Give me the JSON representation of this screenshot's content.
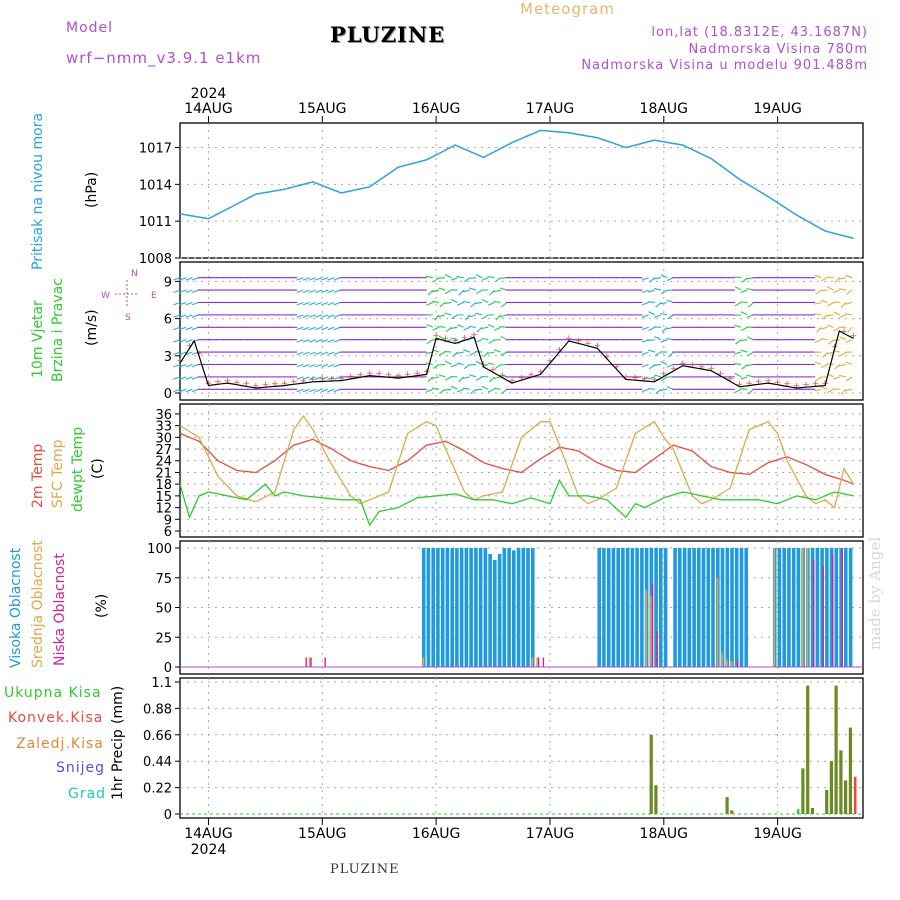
{
  "header": {
    "model_label": "Model",
    "model_name": "wrf−nmm_v3.9.1  e1km",
    "station": "PLUZINE",
    "title": "Meteogram",
    "lonlat": "lon,lat (18.8312E, 43.1687N)",
    "elevation": "Nadmorska Visina 780m",
    "model_elevation": "Nadmorska Visina u modelu 901.488m"
  },
  "footer": {
    "station": "PLUZINE",
    "credit": "made by Angel"
  },
  "colors": {
    "pressure": "#2ba3e0",
    "t2m": "#e84c3d",
    "sfc": "#e0a84a",
    "dew": "#2ecc2e",
    "high_cloud": "#1e9be0",
    "mid_cloud": "#e0a84a",
    "low_cloud": "#d0209a",
    "total_precip": "#6a8a22",
    "convective": "#e84c3d"
  },
  "chart_data": [
    {
      "type": "line",
      "name": "pressure",
      "x_labels": [
        "14AUG",
        "15AUG",
        "16AUG",
        "17AUG",
        "18AUG",
        "19AUG"
      ],
      "year_label": "2024",
      "ylabel_parts": [
        "Pritisak na nivou mora",
        "(hPa)"
      ],
      "ylim": [
        1008,
        1019
      ],
      "yticks": [
        "1008",
        "1011",
        "1014",
        "1017"
      ],
      "x": [
        0,
        6,
        10,
        16,
        22,
        28,
        34,
        40,
        46,
        52,
        58,
        64,
        70,
        76,
        82,
        88,
        94,
        100,
        106,
        112,
        118,
        124,
        130,
        136,
        142
      ],
      "y": [
        1011.6,
        1011.2,
        1012.0,
        1013.2,
        1013.6,
        1014.2,
        1013.3,
        1013.8,
        1015.4,
        1016.0,
        1017.2,
        1016.2,
        1017.4,
        1018.4,
        1018.2,
        1017.8,
        1017.0,
        1017.6,
        1017.2,
        1016.1,
        1014.4,
        1013.0,
        1011.5,
        1010.2,
        1009.6
      ]
    },
    {
      "type": "line",
      "name": "wind",
      "ylabel_parts": [
        "10m Vjetar",
        "Brzina i Pravac",
        "(m/s)"
      ],
      "direction_legend": [
        "N",
        "W",
        "E",
        "S"
      ],
      "ylim": [
        0,
        10
      ],
      "yticks": [
        "0",
        "3",
        "6",
        "9"
      ],
      "x": [
        0,
        3,
        6,
        10,
        16,
        22,
        28,
        34,
        40,
        46,
        52,
        54,
        58,
        62,
        64,
        70,
        76,
        82,
        88,
        94,
        100,
        106,
        112,
        118,
        124,
        130,
        136,
        139,
        142
      ],
      "y": [
        2.4,
        4.2,
        0.6,
        0.8,
        0.4,
        0.6,
        0.9,
        1.0,
        1.4,
        1.2,
        1.5,
        4.4,
        4.0,
        4.5,
        2.1,
        0.8,
        1.5,
        4.2,
        3.6,
        1.1,
        0.9,
        2.2,
        1.8,
        0.5,
        0.8,
        0.4,
        0.6,
        5.0,
        4.4
      ]
    },
    {
      "type": "line",
      "name": "temperature",
      "ylabel_parts": [
        "2m Temp",
        "SFC Temp",
        "dewpt Temp",
        "(C)"
      ],
      "ylim": [
        6,
        37
      ],
      "yticks": [
        "6",
        "9",
        "12",
        "15",
        "18",
        "21",
        "24",
        "27",
        "30",
        "33",
        "36"
      ],
      "series": [
        {
          "name": "2m Temp",
          "x": [
            0,
            4,
            8,
            12,
            16,
            20,
            24,
            28,
            32,
            36,
            40,
            44,
            48,
            52,
            56,
            60,
            64,
            68,
            72,
            76,
            80,
            84,
            88,
            92,
            96,
            100,
            104,
            108,
            112,
            116,
            120,
            124,
            128,
            132,
            136,
            140,
            142
          ],
          "y": [
            31,
            29,
            24,
            21.5,
            21,
            24,
            28,
            29.5,
            27,
            24,
            22.5,
            21.5,
            24,
            28,
            29,
            26.5,
            23.5,
            22,
            21,
            24.5,
            27.5,
            26.5,
            23.5,
            21.5,
            21,
            24.5,
            28,
            26.5,
            22.5,
            21,
            20.5,
            23.5,
            25,
            23,
            20.5,
            19,
            18
          ]
        },
        {
          "name": "SFC Temp",
          "x": [
            0,
            4,
            8,
            12,
            16,
            20,
            24,
            26,
            28,
            32,
            36,
            38,
            40,
            44,
            48,
            52,
            54,
            56,
            60,
            62,
            64,
            68,
            72,
            76,
            78,
            80,
            84,
            86,
            88,
            92,
            96,
            100,
            102,
            104,
            108,
            110,
            112,
            116,
            120,
            124,
            126,
            128,
            132,
            134,
            136,
            138,
            140,
            142
          ],
          "y": [
            33,
            30,
            20,
            15,
            13.5,
            16,
            32,
            35.5,
            32,
            23,
            15,
            13,
            14,
            16,
            31,
            34,
            33,
            27,
            16,
            14,
            15,
            16,
            30,
            34,
            34,
            28,
            15,
            13,
            14,
            17,
            31,
            34,
            30,
            27,
            15,
            13,
            14,
            17,
            32,
            34,
            31,
            24,
            15,
            13,
            14,
            12,
            22,
            18
          ]
        },
        {
          "name": "dewpt Temp",
          "x": [
            0,
            2,
            4,
            6,
            10,
            14,
            18,
            20,
            22,
            26,
            30,
            34,
            38,
            40,
            42,
            46,
            50,
            54,
            58,
            62,
            66,
            70,
            74,
            78,
            80,
            82,
            86,
            90,
            94,
            96,
            98,
            102,
            106,
            110,
            114,
            118,
            122,
            126,
            130,
            134,
            138,
            142
          ],
          "y": [
            18,
            9.5,
            15,
            16,
            15,
            14,
            18,
            15,
            16,
            15,
            14.5,
            14,
            14,
            7.5,
            11,
            12,
            14.5,
            15,
            15.5,
            14,
            14,
            13,
            14.5,
            13,
            19,
            15,
            15,
            14,
            9.5,
            13,
            12,
            14.5,
            16,
            15,
            14,
            14,
            14,
            13,
            15,
            14,
            16,
            15
          ]
        }
      ]
    },
    {
      "type": "bar",
      "name": "clouds",
      "ylabel_parts": [
        "Visoka Oblacnost",
        "Srednja Oblacnost",
        "Niska Oblacnost",
        "(%)"
      ],
      "ylim": [
        0,
        100
      ],
      "yticks": [
        "0",
        "25",
        "50",
        "75",
        "100"
      ],
      "high_cloud_hours": [
        51,
        52,
        53,
        54,
        55,
        56,
        57,
        58,
        59,
        60,
        61,
        62,
        63,
        64,
        65,
        66,
        67,
        68,
        69,
        70,
        71,
        72,
        73,
        74,
        88,
        89,
        90,
        91,
        92,
        93,
        94,
        95,
        96,
        97,
        98,
        99,
        100,
        101,
        102,
        104,
        105,
        106,
        107,
        108,
        109,
        110,
        111,
        112,
        113,
        114,
        115,
        116,
        117,
        118,
        119,
        125,
        126,
        127,
        128,
        129,
        130,
        131,
        132,
        133,
        134,
        135,
        136,
        137,
        138,
        139,
        140,
        141
      ],
      "high_cloud_values": [
        100,
        100,
        100,
        100,
        100,
        100,
        100,
        100,
        100,
        100,
        100,
        100,
        100,
        100,
        95,
        90,
        95,
        100,
        100,
        98,
        100,
        100,
        100,
        100,
        100,
        100,
        100,
        100,
        100,
        100,
        100,
        100,
        100,
        100,
        100,
        100,
        100,
        100,
        100,
        100,
        100,
        100,
        100,
        100,
        100,
        100,
        100,
        100,
        100,
        100,
        100,
        100,
        100,
        100,
        100,
        100,
        100,
        100,
        100,
        100,
        100,
        100,
        100,
        100,
        100,
        100,
        100,
        100,
        100,
        100,
        100,
        100
      ],
      "mid_cloud_hours": [
        27,
        51,
        74,
        75,
        98,
        99,
        113,
        114,
        115,
        116,
        125,
        131,
        132
      ],
      "mid_cloud_values": [
        8,
        8,
        8,
        8,
        65,
        60,
        75,
        12,
        6,
        5,
        100,
        100,
        100
      ],
      "low_cloud_hours": [
        26,
        27,
        30,
        75,
        76,
        99,
        100,
        117,
        133,
        135,
        137,
        139
      ],
      "low_cloud_values": [
        8,
        8,
        8,
        8,
        8,
        70,
        30,
        6,
        90,
        85,
        95,
        100
      ]
    },
    {
      "type": "bar",
      "name": "precipitation",
      "ylabel_parts": [
        "1hr Precip",
        "(mm)"
      ],
      "legend": [
        "Ukupna  Kisa",
        "Konvek.Kisa",
        "Zaledj.Kisa",
        "Snijeg",
        "Grad"
      ],
      "ylim": [
        0,
        1.1
      ],
      "yticks": [
        "0",
        "0.22",
        "0.44",
        "0.66",
        "0.88",
        "1.1"
      ],
      "total_hours": [
        99,
        100,
        115,
        116,
        131,
        132,
        133,
        136,
        137,
        138,
        139,
        140,
        141
      ],
      "total_values": [
        0.66,
        0.24,
        0.14,
        0.03,
        0.38,
        1.07,
        0.05,
        0.2,
        0.44,
        1.07,
        0.53,
        0.28,
        0.72
      ],
      "convective_hours": [
        116,
        142
      ],
      "convective_values": [
        0.02,
        0.31
      ],
      "grad_hours": [
        130
      ],
      "grad_values": [
        0.04
      ]
    }
  ]
}
